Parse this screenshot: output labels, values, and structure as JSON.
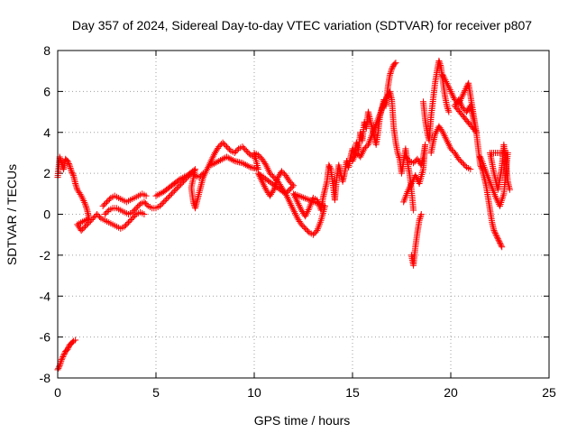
{
  "chart_data": {
    "type": "scatter",
    "title": "Day 357 of 2024, Sidereal Day-to-day VTEC variation (SDTVAR) for receiver p807",
    "xlabel": "GPS time / hours",
    "ylabel": "SDTVAR / TECUs",
    "xlim": [
      0,
      25
    ],
    "ylim": [
      -8,
      8
    ],
    "xticks": [
      "0",
      "5",
      "10",
      "15",
      "20",
      "25"
    ],
    "yticks": [
      "-8",
      "-6",
      "-4",
      "-2",
      "0",
      "2",
      "4",
      "6",
      "8"
    ],
    "grid": true,
    "marker": "plus",
    "colors": {
      "series": "#ff0000",
      "grid": "#a0a0a0",
      "axis": "#000000"
    },
    "series": [
      {
        "name": "SDTVAR",
        "points": [
          [
            0.0,
            -7.6
          ],
          [
            0.1,
            -7.4
          ],
          [
            0.2,
            -7.1
          ],
          [
            0.3,
            -6.9
          ],
          [
            0.4,
            -6.7
          ],
          [
            0.5,
            -6.6
          ],
          [
            0.6,
            -6.4
          ],
          [
            0.7,
            -6.3
          ],
          [
            0.8,
            -6.2
          ],
          [
            0.9,
            -6.15
          ],
          [
            0.0,
            1.8
          ],
          [
            0.1,
            2.8
          ],
          [
            0.2,
            2.5
          ],
          [
            0.3,
            2.2
          ],
          [
            0.4,
            2.7
          ],
          [
            0.5,
            2.6
          ],
          [
            0.6,
            2.4
          ],
          [
            0.7,
            2.1
          ],
          [
            0.8,
            1.9
          ],
          [
            0.9,
            1.5
          ],
          [
            1.0,
            1.2
          ],
          [
            1.2,
            0.9
          ],
          [
            1.4,
            0.5
          ],
          [
            1.5,
            0.2
          ],
          [
            1.6,
            -0.2
          ],
          [
            1.0,
            -0.5
          ],
          [
            1.2,
            -0.8
          ],
          [
            1.4,
            -0.6
          ],
          [
            1.6,
            -0.4
          ],
          [
            1.8,
            -0.2
          ],
          [
            2.0,
            0.0
          ],
          [
            2.2,
            -0.2
          ],
          [
            2.4,
            -0.3
          ],
          [
            2.6,
            -0.4
          ],
          [
            2.8,
            -0.5
          ],
          [
            3.0,
            -0.6
          ],
          [
            3.2,
            -0.7
          ],
          [
            3.4,
            -0.6
          ],
          [
            3.6,
            -0.4
          ],
          [
            3.8,
            -0.2
          ],
          [
            4.0,
            0.0
          ],
          [
            4.2,
            0.1
          ],
          [
            4.4,
            0.0
          ],
          [
            2.3,
            0.4
          ],
          [
            2.5,
            0.6
          ],
          [
            2.7,
            0.8
          ],
          [
            2.9,
            0.9
          ],
          [
            3.1,
            0.8
          ],
          [
            3.3,
            0.7
          ],
          [
            3.5,
            0.6
          ],
          [
            3.7,
            0.7
          ],
          [
            3.9,
            0.8
          ],
          [
            4.1,
            0.9
          ],
          [
            4.3,
            1.0
          ],
          [
            4.5,
            0.9
          ],
          [
            2.4,
            0.0
          ],
          [
            2.6,
            0.2
          ],
          [
            2.8,
            0.3
          ],
          [
            3.0,
            0.3
          ],
          [
            3.2,
            0.2
          ],
          [
            3.4,
            0.1
          ],
          [
            3.6,
            0.0
          ],
          [
            3.8,
            0.1
          ],
          [
            4.0,
            0.3
          ],
          [
            4.2,
            0.5
          ],
          [
            4.4,
            0.6
          ],
          [
            4.6,
            0.4
          ],
          [
            4.8,
            0.3
          ],
          [
            5.0,
            0.3
          ],
          [
            5.2,
            0.4
          ],
          [
            5.4,
            0.6
          ],
          [
            5.6,
            0.8
          ],
          [
            5.8,
            1.0
          ],
          [
            6.0,
            1.2
          ],
          [
            6.2,
            1.4
          ],
          [
            6.4,
            1.6
          ],
          [
            6.6,
            1.8
          ],
          [
            6.8,
            2.0
          ],
          [
            7.0,
            1.9
          ],
          [
            7.2,
            1.8
          ],
          [
            7.4,
            2.0
          ],
          [
            5.0,
            0.9
          ],
          [
            5.4,
            1.1
          ],
          [
            5.8,
            1.4
          ],
          [
            6.2,
            1.7
          ],
          [
            6.6,
            1.9
          ],
          [
            7.0,
            2.2
          ],
          [
            6.8,
            1.3
          ],
          [
            6.9,
            0.6
          ],
          [
            7.0,
            0.3
          ],
          [
            7.4,
            1.8
          ],
          [
            7.6,
            2.2
          ],
          [
            7.8,
            2.6
          ],
          [
            8.0,
            3.0
          ],
          [
            8.2,
            3.3
          ],
          [
            8.4,
            3.5
          ],
          [
            8.6,
            3.3
          ],
          [
            8.8,
            3.1
          ],
          [
            9.0,
            3.0
          ],
          [
            9.2,
            3.2
          ],
          [
            9.4,
            3.3
          ],
          [
            9.6,
            3.1
          ],
          [
            9.8,
            2.9
          ],
          [
            10.0,
            2.8
          ],
          [
            7.8,
            2.4
          ],
          [
            8.2,
            2.6
          ],
          [
            8.6,
            2.8
          ],
          [
            9.0,
            2.6
          ],
          [
            9.4,
            2.5
          ],
          [
            9.8,
            2.3
          ],
          [
            10.2,
            2.2
          ],
          [
            10.0,
            3.0
          ],
          [
            10.2,
            2.9
          ],
          [
            10.4,
            2.7
          ],
          [
            10.6,
            2.4
          ],
          [
            10.8,
            2.0
          ],
          [
            11.0,
            1.8
          ],
          [
            11.2,
            1.6
          ],
          [
            11.4,
            1.3
          ],
          [
            11.6,
            1.0
          ],
          [
            10.2,
            2.0
          ],
          [
            10.4,
            1.6
          ],
          [
            10.6,
            1.2
          ],
          [
            10.8,
            0.9
          ],
          [
            11.0,
            1.2
          ],
          [
            11.2,
            1.8
          ],
          [
            11.4,
            2.1
          ],
          [
            11.6,
            1.9
          ],
          [
            11.8,
            1.6
          ],
          [
            12.0,
            1.4
          ],
          [
            11.6,
            1.0
          ],
          [
            11.8,
            0.6
          ],
          [
            12.0,
            0.2
          ],
          [
            12.2,
            -0.2
          ],
          [
            12.4,
            -0.5
          ],
          [
            12.6,
            -0.7
          ],
          [
            12.8,
            -0.9
          ],
          [
            13.0,
            -1.0
          ],
          [
            13.2,
            -0.8
          ],
          [
            13.4,
            -0.3
          ],
          [
            13.6,
            0.4
          ],
          [
            12.0,
            1.0
          ],
          [
            12.2,
            0.6
          ],
          [
            12.4,
            0.2
          ],
          [
            12.6,
            -0.1
          ],
          [
            12.8,
            0.3
          ],
          [
            13.0,
            0.8
          ],
          [
            13.2,
            0.7
          ],
          [
            13.4,
            0.2
          ],
          [
            13.5,
            0.8
          ],
          [
            13.6,
            1.2
          ],
          [
            13.7,
            1.6
          ],
          [
            13.8,
            2.4
          ],
          [
            13.9,
            2.2
          ],
          [
            14.0,
            1.5
          ],
          [
            14.1,
            0.7
          ],
          [
            14.2,
            1.8
          ],
          [
            14.3,
            2.4
          ],
          [
            14.4,
            2.0
          ],
          [
            14.5,
            1.6
          ],
          [
            14.6,
            2.0
          ],
          [
            14.7,
            2.6
          ],
          [
            14.8,
            2.3
          ],
          [
            14.9,
            2.8
          ],
          [
            15.0,
            3.2
          ],
          [
            15.1,
            2.9
          ],
          [
            15.2,
            3.5
          ],
          [
            15.3,
            3.1
          ],
          [
            15.4,
            4.0
          ],
          [
            15.5,
            3.6
          ],
          [
            15.6,
            4.5
          ],
          [
            15.7,
            4.2
          ],
          [
            15.8,
            5.0
          ],
          [
            15.9,
            4.6
          ],
          [
            16.0,
            4.2
          ],
          [
            16.1,
            3.8
          ],
          [
            16.2,
            3.4
          ],
          [
            16.3,
            4.0
          ],
          [
            16.4,
            4.8
          ],
          [
            16.5,
            5.2
          ],
          [
            16.6,
            5.6
          ],
          [
            16.7,
            5.3
          ],
          [
            16.8,
            6.2
          ],
          [
            16.9,
            6.8
          ],
          [
            17.0,
            7.1
          ],
          [
            17.1,
            7.3
          ],
          [
            17.2,
            7.4
          ],
          [
            15.0,
            2.6
          ],
          [
            15.2,
            3.0
          ],
          [
            15.4,
            2.8
          ],
          [
            15.6,
            3.2
          ],
          [
            15.8,
            3.4
          ],
          [
            16.0,
            3.9
          ],
          [
            16.2,
            4.4
          ],
          [
            16.4,
            4.9
          ],
          [
            16.6,
            5.4
          ],
          [
            16.8,
            5.8
          ],
          [
            16.9,
            6.0
          ],
          [
            17.0,
            5.6
          ],
          [
            17.1,
            4.2
          ],
          [
            17.2,
            3.5
          ],
          [
            17.3,
            3.0
          ],
          [
            17.4,
            2.7
          ],
          [
            17.5,
            2.0
          ],
          [
            17.6,
            2.6
          ],
          [
            17.7,
            3.2
          ],
          [
            17.8,
            2.5
          ],
          [
            17.9,
            2.0
          ],
          [
            18.0,
            1.2
          ],
          [
            18.1,
            0.2
          ],
          [
            18.0,
            -2.0
          ],
          [
            18.1,
            -2.5
          ],
          [
            18.2,
            -1.6
          ],
          [
            18.3,
            -0.9
          ],
          [
            18.4,
            -0.3
          ],
          [
            18.5,
            0.0
          ],
          [
            17.7,
            2.8
          ],
          [
            17.9,
            2.6
          ],
          [
            18.1,
            2.5
          ],
          [
            18.3,
            2.7
          ],
          [
            18.5,
            2.4
          ],
          [
            18.6,
            2.8
          ],
          [
            18.7,
            3.4
          ],
          [
            18.6,
            2.2
          ],
          [
            18.4,
            1.5
          ],
          [
            18.2,
            1.9
          ],
          [
            17.8,
            1.1
          ],
          [
            17.6,
            0.6
          ],
          [
            18.6,
            5.5
          ],
          [
            18.7,
            4.6
          ],
          [
            18.8,
            4.0
          ],
          [
            18.9,
            3.6
          ],
          [
            19.0,
            4.8
          ],
          [
            19.1,
            5.6
          ],
          [
            19.2,
            6.4
          ],
          [
            19.3,
            7.0
          ],
          [
            19.4,
            7.5
          ],
          [
            19.5,
            7.2
          ],
          [
            19.6,
            6.5
          ],
          [
            19.7,
            5.8
          ],
          [
            19.8,
            5.3
          ],
          [
            19.9,
            5.0
          ],
          [
            19.0,
            3.0
          ],
          [
            19.1,
            3.5
          ],
          [
            19.2,
            3.9
          ],
          [
            19.4,
            4.3
          ],
          [
            19.6,
            4.0
          ],
          [
            19.8,
            3.6
          ],
          [
            20.0,
            3.2
          ],
          [
            20.2,
            3.0
          ],
          [
            20.4,
            2.7
          ],
          [
            20.6,
            2.5
          ],
          [
            20.8,
            2.3
          ],
          [
            21.0,
            2.2
          ],
          [
            19.6,
            6.8
          ],
          [
            19.8,
            6.4
          ],
          [
            20.0,
            6.0
          ],
          [
            20.2,
            5.6
          ],
          [
            20.4,
            5.4
          ],
          [
            20.6,
            5.8
          ],
          [
            20.8,
            6.2
          ],
          [
            20.9,
            6.4
          ],
          [
            21.0,
            5.8
          ],
          [
            21.1,
            5.2
          ],
          [
            21.2,
            4.6
          ],
          [
            21.3,
            4.0
          ],
          [
            20.2,
            5.3
          ],
          [
            20.4,
            5.6
          ],
          [
            20.6,
            5.2
          ],
          [
            20.8,
            5.0
          ],
          [
            21.0,
            5.3
          ],
          [
            21.3,
            4.0
          ],
          [
            21.4,
            3.2
          ],
          [
            21.5,
            2.4
          ],
          [
            21.6,
            2.2
          ],
          [
            21.7,
            1.8
          ],
          [
            21.8,
            1.4
          ],
          [
            21.9,
            0.8
          ],
          [
            22.0,
            0.2
          ],
          [
            22.1,
            -0.4
          ],
          [
            22.2,
            -0.8
          ],
          [
            22.3,
            -1.0
          ],
          [
            22.4,
            -1.2
          ],
          [
            22.5,
            -1.4
          ],
          [
            22.6,
            -1.6
          ],
          [
            21.5,
            2.8
          ],
          [
            21.7,
            2.3
          ],
          [
            21.9,
            1.8
          ],
          [
            22.1,
            1.3
          ],
          [
            22.3,
            0.8
          ],
          [
            22.5,
            0.4
          ],
          [
            22.7,
            1.0
          ],
          [
            22.8,
            2.0
          ],
          [
            22.9,
            3.0
          ],
          [
            22.0,
            3.0
          ],
          [
            22.2,
            2.0
          ],
          [
            22.4,
            1.2
          ],
          [
            22.6,
            2.3
          ],
          [
            22.7,
            3.4
          ],
          [
            22.8,
            2.6
          ],
          [
            22.9,
            1.6
          ],
          [
            23.0,
            1.2
          ]
        ]
      }
    ]
  }
}
